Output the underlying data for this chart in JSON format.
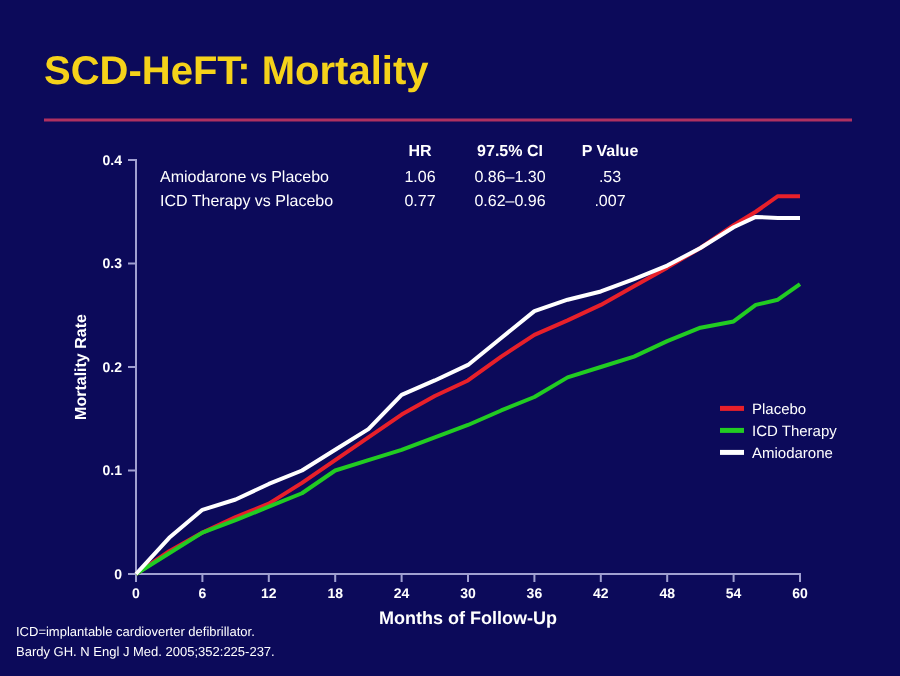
{
  "chart_data": {
    "type": "line",
    "title": "SCD-HeFT: Mortality",
    "xlabel": "Months of Follow-Up",
    "ylabel": "Mortality Rate",
    "x": [
      0,
      3,
      6,
      9,
      12,
      15,
      18,
      21,
      24,
      27,
      30,
      33,
      36,
      39,
      42,
      45,
      48,
      51,
      54,
      56,
      58,
      60
    ],
    "series": [
      {
        "name": "Placebo",
        "color": "#e8202a",
        "values": [
          0,
          0.022,
          0.04,
          0.055,
          0.068,
          0.088,
          0.11,
          0.132,
          0.154,
          0.172,
          0.187,
          0.21,
          0.231,
          0.245,
          0.26,
          0.278,
          0.296,
          0.315,
          0.337,
          0.35,
          0.365,
          0.365
        ]
      },
      {
        "name": "ICD Therapy",
        "color": "#22cc22",
        "values": [
          0,
          0.02,
          0.04,
          0.052,
          0.065,
          0.078,
          0.1,
          0.11,
          0.12,
          0.132,
          0.144,
          0.158,
          0.171,
          0.19,
          0.2,
          0.21,
          0.225,
          0.238,
          0.244,
          0.26,
          0.265,
          0.28
        ]
      },
      {
        "name": "Amiodarone",
        "color": "#ffffff",
        "values": [
          0,
          0.035,
          0.062,
          0.072,
          0.087,
          0.1,
          0.12,
          0.14,
          0.173,
          0.187,
          0.202,
          0.228,
          0.254,
          0.265,
          0.273,
          0.285,
          0.298,
          0.315,
          0.335,
          0.345,
          0.344,
          0.344
        ]
      }
    ],
    "xlim": [
      0,
      60
    ],
    "xticks": [
      0,
      6,
      12,
      18,
      24,
      30,
      36,
      42,
      48,
      54,
      60
    ],
    "ylim": [
      0,
      0.4
    ],
    "yticks": [
      0,
      0.1,
      0.2,
      0.3,
      0.4
    ],
    "legend": "right",
    "grid": false,
    "marker": "none",
    "line_style": "solid",
    "annotations": [
      "HR",
      "97.5% CI",
      "P Value",
      "Amiodarone vs Placebo",
      "1.06",
      "0.86–1.30",
      ".53",
      "ICD Therapy vs Placebo",
      "0.77",
      "0.62–0.96",
      ".007",
      "ICD=implantable cardioverter defibrillator.",
      "Bardy GH. N Engl J Med. 2005;352:225-237."
    ]
  }
}
